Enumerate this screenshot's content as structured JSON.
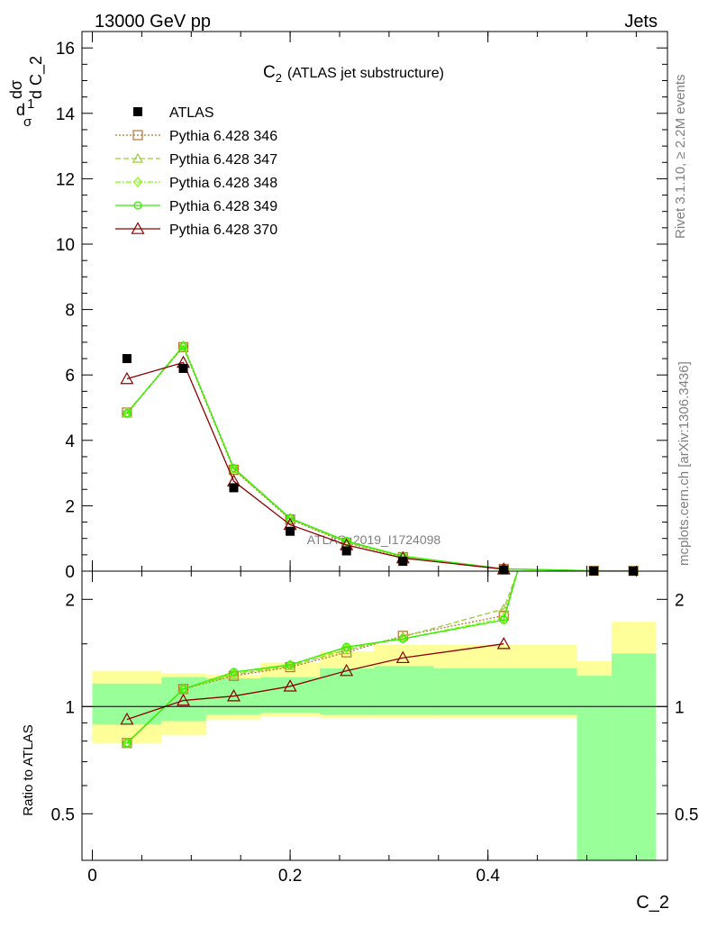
{
  "header": {
    "left": "13000 GeV pp",
    "right": "Jets"
  },
  "plot_title": {
    "main": "C",
    "sub": "2",
    "rest": "(ATLAS jet substructure)"
  },
  "side_labels": {
    "top": "Rivet 3.1.10, ≥ 2.2M events",
    "bottom": "mcplots.cern.ch [arXiv:1306.3436]"
  },
  "watermark": "ATLAS_2019_I1724098",
  "y_label_main": {
    "part1": "d",
    "part2": "1",
    "part3": "σ",
    "part4": "dσ",
    "part5": "d C_2"
  },
  "y_label_ratio": "Ratio to ATLAS",
  "x_label": "C_2",
  "colors": {
    "data": "#000000",
    "p346": "#b87333",
    "p347": "#9acd32",
    "p348": "#7fff00",
    "p349": "#33ee00",
    "p370": "#8b0000",
    "band_outer": "#ffff99",
    "band_inner": "#99ff99"
  },
  "chart_data": {
    "type": "line",
    "main_panel": {
      "x_ticks": [
        "0",
        "0.2",
        "0.4"
      ],
      "y_ticks": [
        "0",
        "2",
        "4",
        "6",
        "8",
        "10",
        "12",
        "14",
        "16"
      ],
      "ylim": [
        0,
        16.5
      ],
      "xlim": [
        -0.012,
        0.58
      ]
    },
    "ratio_panel": {
      "y_ticks": [
        "0.5",
        "1",
        "2"
      ],
      "ylim": [
        0.37,
        2.4
      ],
      "log_scale": true
    },
    "legend": [
      {
        "name": "ATLAS",
        "style": "data"
      },
      {
        "name": "Pythia 6.428 346",
        "style": "p346"
      },
      {
        "name": "Pythia 6.428 347",
        "style": "p347"
      },
      {
        "name": "Pythia 6.428 348",
        "style": "p348"
      },
      {
        "name": "Pythia 6.428 349",
        "style": "p349"
      },
      {
        "name": "Pythia 6.428 370",
        "style": "p370"
      }
    ],
    "bin_edges": [
      0.0,
      0.07,
      0.115,
      0.17,
      0.23,
      0.285,
      0.345,
      0.49,
      0.525,
      0.57
    ],
    "data": {
      "x": [
        0.035,
        0.092,
        0.143,
        0.2,
        0.257,
        0.314,
        0.416,
        0.507,
        0.547
      ],
      "y": [
        6.5,
        6.2,
        2.55,
        1.22,
        0.62,
        0.3,
        0.04,
        0.006,
        0.004
      ]
    },
    "series": [
      {
        "name": "Pythia 6.428 346",
        "key": "p346",
        "x": [
          0.035,
          0.092,
          0.143,
          0.2,
          0.257,
          0.314,
          0.416,
          0.507,
          0.547
        ],
        "y": [
          4.85,
          6.85,
          3.1,
          1.58,
          0.87,
          0.43,
          0.07,
          0.012,
          0.008
        ]
      },
      {
        "name": "Pythia 6.428 347",
        "key": "p347",
        "x": [
          0.035,
          0.092,
          0.143,
          0.2,
          0.257,
          0.314,
          0.416,
          0.507,
          0.547
        ],
        "y": [
          4.82,
          6.88,
          3.12,
          1.6,
          0.89,
          0.44,
          0.072,
          0.012,
          0.008
        ]
      },
      {
        "name": "Pythia 6.428 348",
        "key": "p348",
        "x": [
          0.035,
          0.092,
          0.143,
          0.2,
          0.257,
          0.314,
          0.416,
          0.507,
          0.547
        ],
        "y": [
          4.84,
          6.9,
          3.14,
          1.62,
          0.9,
          0.45,
          0.071,
          0.012,
          0.008
        ]
      },
      {
        "name": "Pythia 6.428 349",
        "key": "p349",
        "x": [
          0.035,
          0.092,
          0.143,
          0.2,
          0.257,
          0.314,
          0.416,
          0.507,
          0.547
        ],
        "y": [
          4.83,
          6.88,
          3.15,
          1.62,
          0.92,
          0.46,
          0.07,
          0.012,
          0.008
        ]
      },
      {
        "name": "Pythia 6.428 370",
        "key": "p370",
        "x": [
          0.035,
          0.092,
          0.143,
          0.2,
          0.257,
          0.314,
          0.416
        ],
        "y": [
          5.88,
          6.38,
          2.75,
          1.42,
          0.8,
          0.4,
          0.06
        ]
      }
    ],
    "ratios": {
      "x": [
        0.035,
        0.092,
        0.143,
        0.2,
        0.257,
        0.314,
        0.416
      ],
      "p346": [
        0.79,
        1.12,
        1.22,
        1.29,
        1.42,
        1.58,
        1.8
      ],
      "p347": [
        0.79,
        1.12,
        1.23,
        1.3,
        1.44,
        1.57,
        1.88
      ],
      "p348": [
        0.79,
        1.12,
        1.24,
        1.31,
        1.46,
        1.55,
        1.77
      ],
      "p349": [
        0.79,
        1.12,
        1.25,
        1.31,
        1.47,
        1.55,
        1.75
      ],
      "p370": [
        0.92,
        1.04,
        1.07,
        1.14,
        1.26,
        1.37,
        1.5
      ]
    },
    "ratio_edge": {
      "x": 0.43,
      "y": 2.4
    },
    "bands": {
      "outer": [
        [
          0.79,
          1.26
        ],
        [
          0.83,
          1.24
        ],
        [
          0.92,
          1.23
        ],
        [
          0.94,
          1.33
        ],
        [
          0.93,
          1.43
        ],
        [
          0.93,
          1.49
        ],
        [
          0.93,
          1.49
        ],
        [
          0.93,
          1.34
        ],
        [
          0.93,
          1.73
        ]
      ],
      "inner": [
        [
          0.89,
          1.16
        ],
        [
          0.91,
          1.21
        ],
        [
          0.95,
          1.2
        ],
        [
          0.96,
          1.21
        ],
        [
          0.95,
          1.28
        ],
        [
          0.95,
          1.3
        ],
        [
          0.95,
          1.28
        ],
        [
          0.37,
          1.22
        ],
        [
          0.37,
          1.41
        ]
      ]
    }
  }
}
